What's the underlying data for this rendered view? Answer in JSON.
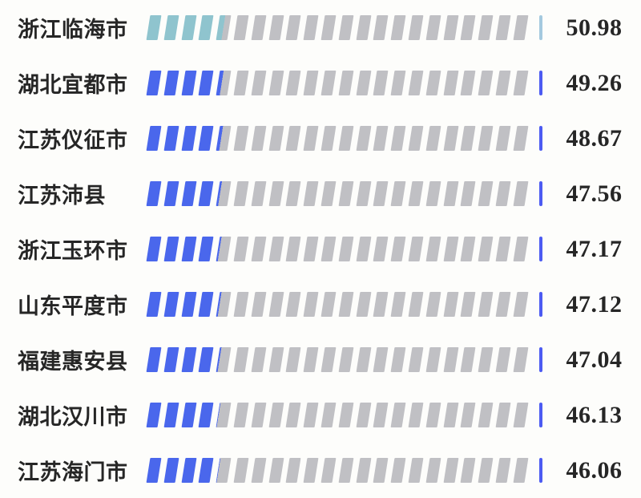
{
  "chart_data": {
    "type": "bar",
    "orientation": "horizontal",
    "bar_style": "segmented-pictorial",
    "categories": [
      "浙江临海市",
      "湖北宜都市",
      "江苏仪征市",
      "江苏沛县",
      "浙江玉环市",
      "山东平度市",
      "福建惠安县",
      "湖北汉川市",
      "江苏海门市"
    ],
    "values": [
      50.98,
      49.26,
      48.67,
      47.56,
      47.17,
      47.12,
      47.04,
      46.13,
      46.06
    ],
    "value_labels": [
      "50.98",
      "49.26",
      "48.67",
      "47.56",
      "47.17",
      "47.12",
      "47.04",
      "46.13",
      "46.06"
    ],
    "bar": {
      "segments": 22,
      "scale_max": 250,
      "highlight_index": 0
    },
    "legend": "none",
    "grid": "off",
    "colors": {
      "highlight_fill": "#8fc4ce",
      "highlight_tick": "#a4c9df",
      "fill": "#4a67ec",
      "tick": "#4c5bf2",
      "empty": "#c0c0c4",
      "text": "#262626",
      "background": "#fdfdfb"
    }
  }
}
